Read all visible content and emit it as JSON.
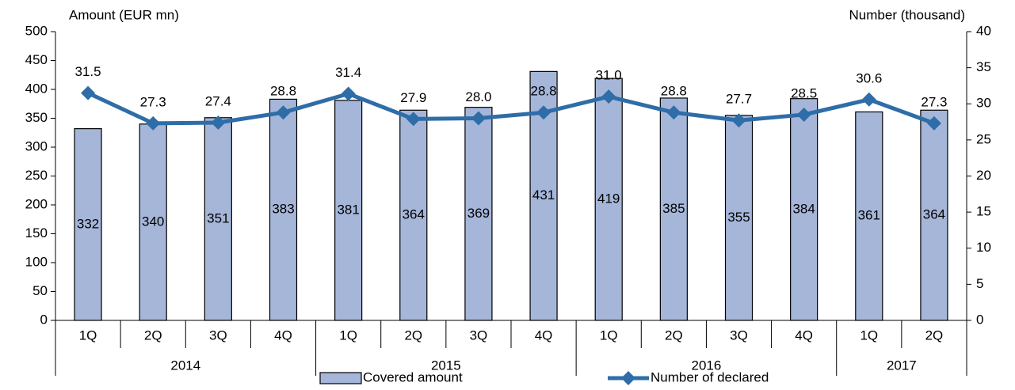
{
  "chart_data": {
    "type": "bar_line",
    "y_axis_title": "Amount (EUR mn)",
    "y2_axis_title": "Number (thousand)",
    "groups": [
      {
        "label": "2014",
        "categories": [
          "1Q",
          "2Q",
          "3Q",
          "4Q"
        ]
      },
      {
        "label": "2015",
        "categories": [
          "1Q",
          "2Q",
          "3Q",
          "4Q"
        ]
      },
      {
        "label": "2016",
        "categories": [
          "1Q",
          "2Q",
          "3Q",
          "4Q"
        ]
      },
      {
        "label": "2017",
        "categories": [
          "1Q",
          "2Q"
        ]
      }
    ],
    "series": [
      {
        "name": "Covered amount",
        "type": "bar",
        "color": "#a5b6d9",
        "values": [
          332,
          340,
          351,
          383,
          381,
          364,
          369,
          431,
          419,
          385,
          355,
          384,
          361,
          364
        ]
      },
      {
        "name": "Number of declared",
        "type": "line",
        "axis": "y2",
        "color": "#2e6da8",
        "values": [
          31.5,
          27.3,
          27.4,
          28.8,
          31.4,
          27.9,
          28.0,
          28.8,
          31.0,
          28.8,
          27.7,
          28.5,
          30.6,
          27.3
        ],
        "value_labels": [
          "31.5",
          "27.3",
          "27.4",
          "28.8",
          "31.4",
          "27.9",
          "28.0",
          "28.8",
          "31.0",
          "28.8",
          "27.7",
          "28.5",
          "30.6",
          "27.3"
        ]
      }
    ],
    "ylim": [
      0,
      500
    ],
    "yticks": [
      0,
      50,
      100,
      150,
      200,
      250,
      300,
      350,
      400,
      450,
      500
    ],
    "y2lim": [
      0,
      40
    ],
    "y2ticks": [
      0,
      5,
      10,
      15,
      20,
      25,
      30,
      35,
      40
    ],
    "grid": false
  }
}
